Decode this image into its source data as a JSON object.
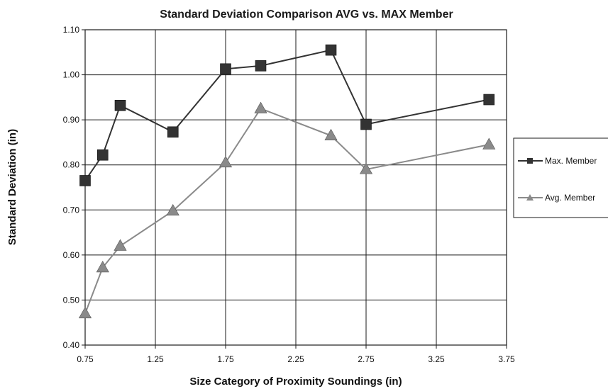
{
  "chart_data": {
    "type": "line",
    "title": "Standard Deviation Comparison AVG vs. MAX Member",
    "xlabel": "Size Category of Proximity Soundings (in)",
    "ylabel": "Standard Deviation (in)",
    "xlim": [
      0.75,
      3.75
    ],
    "ylim": [
      0.4,
      1.1
    ],
    "xticks": [
      "0.75",
      "1.25",
      "1.75",
      "2.25",
      "2.75",
      "3.25",
      "3.75"
    ],
    "yticks": [
      "0.40",
      "0.50",
      "0.60",
      "0.70",
      "0.80",
      "0.90",
      "1.00",
      "1.10"
    ],
    "grid": true,
    "legend_position": "right",
    "series": [
      {
        "name": "Max. Member",
        "color": "#333333",
        "marker": "square",
        "x": [
          0.75,
          0.875,
          1.0,
          1.375,
          1.75,
          2.0,
          2.5,
          2.75,
          3.625
        ],
        "y": [
          0.765,
          0.822,
          0.932,
          0.873,
          1.013,
          1.02,
          1.055,
          0.89,
          0.945
        ]
      },
      {
        "name": "Avg. Member",
        "color": "#8a8a8a",
        "marker": "triangle",
        "x": [
          0.75,
          0.875,
          1.0,
          1.375,
          1.75,
          2.0,
          2.5,
          2.75,
          3.625
        ],
        "y": [
          0.47,
          0.572,
          0.62,
          0.698,
          0.805,
          0.925,
          0.865,
          0.79,
          0.845
        ]
      }
    ]
  }
}
